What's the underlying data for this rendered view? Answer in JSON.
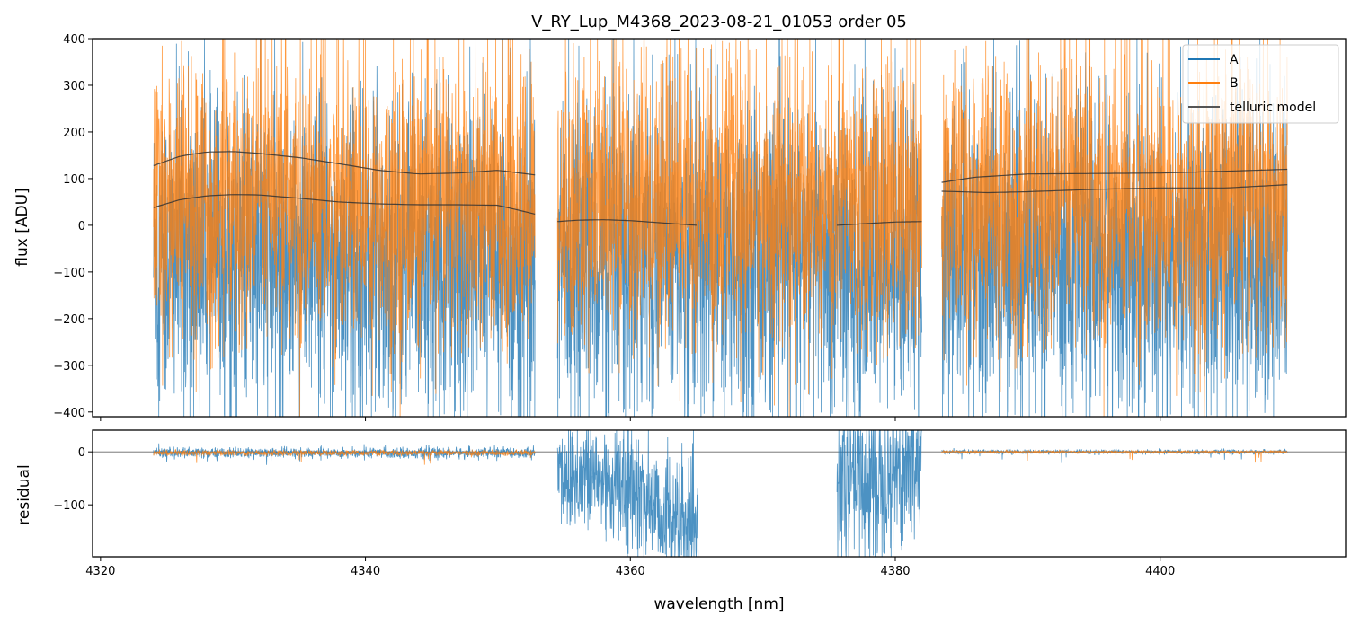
{
  "chart_data": [
    {
      "type": "line",
      "title": "V_RY_Lup_M4368_2023-08-21_01053  order 05",
      "xlabel": "",
      "ylabel": "flux [ADU]",
      "xlim": [
        4319.4,
        4414.0
      ],
      "ylim": [
        -410,
        400
      ],
      "xticks": [
        4320,
        4340,
        4360,
        4380,
        4400
      ],
      "yticks": [
        "400",
        "300",
        "200",
        "100",
        "0",
        "−100",
        "−200",
        "−300",
        "−400"
      ],
      "ytick_values": [
        400,
        300,
        200,
        100,
        0,
        -100,
        -200,
        -300,
        -400
      ],
      "legend": {
        "placement": "top-right",
        "entries": [
          "A",
          "B",
          "telluric model"
        ]
      },
      "colors": {
        "A": "#1f77b4",
        "B": "#ff7f0e",
        "telluric model": "#333333"
      },
      "segments": [
        [
          4324.0,
          4352.8
        ],
        [
          4354.5,
          4382.0
        ],
        [
          4383.5,
          4409.6
        ]
      ],
      "noise_amplitude": {
        "A": 170,
        "B": 150
      },
      "series": [
        {
          "name": "telluric model",
          "x": [
            4324,
            4326,
            4328,
            4330,
            4332,
            4335,
            4338,
            4341,
            4344,
            4347,
            4350,
            4352.8
          ],
          "y": [
            128,
            148,
            157,
            158,
            154,
            145,
            132,
            118,
            110,
            112,
            118,
            108
          ]
        },
        {
          "name": "telluric model",
          "x": [
            4324,
            4326,
            4328,
            4330,
            4332,
            4335,
            4338,
            4341,
            4344,
            4347,
            4350,
            4352.8
          ],
          "y": [
            38,
            55,
            63,
            66,
            65,
            58,
            50,
            46,
            44,
            44,
            43,
            24
          ]
        },
        {
          "name": "telluric model",
          "x": [
            4354.5,
            4356,
            4358,
            4360,
            4362,
            4365
          ],
          "y": [
            8,
            11,
            12,
            10,
            6,
            0
          ]
        },
        {
          "name": "telluric model",
          "x": [
            4375.6,
            4378,
            4380,
            4382
          ],
          "y": [
            0,
            4,
            7,
            8
          ]
        },
        {
          "name": "telluric model",
          "x": [
            4383.5,
            4386,
            4390,
            4395,
            4400,
            4405,
            4409.6
          ],
          "y": [
            92,
            103,
            110,
            111,
            112,
            116,
            120
          ]
        },
        {
          "name": "telluric model",
          "x": [
            4383.5,
            4387,
            4390,
            4395,
            4400,
            4405,
            4409.6
          ],
          "y": [
            73,
            70,
            72,
            77,
            80,
            80,
            87
          ]
        }
      ]
    },
    {
      "type": "line",
      "title": "",
      "xlabel": "wavelength [nm]",
      "ylabel": "residual",
      "xlim": [
        4319.4,
        4414.0
      ],
      "ylim": [
        -198,
        41
      ],
      "xticks": [
        4320,
        4340,
        4360,
        4380,
        4400
      ],
      "yticks": [
        "0",
        "−100"
      ],
      "ytick_values": [
        0,
        -100
      ],
      "zero_line": true,
      "residual_regions": [
        {
          "range": [
            4324.0,
            4352.8
          ],
          "level": -2,
          "spread": 5
        },
        {
          "range": [
            4354.5,
            4365.2
          ],
          "level": -40,
          "spread": 60,
          "trend_end": -170
        },
        {
          "range": [
            4375.6,
            4382.0
          ],
          "level": -60,
          "spread": 80,
          "trend_end": -10
        },
        {
          "range": [
            4383.5,
            4409.6
          ],
          "level": 0,
          "spread": 2
        }
      ]
    }
  ]
}
